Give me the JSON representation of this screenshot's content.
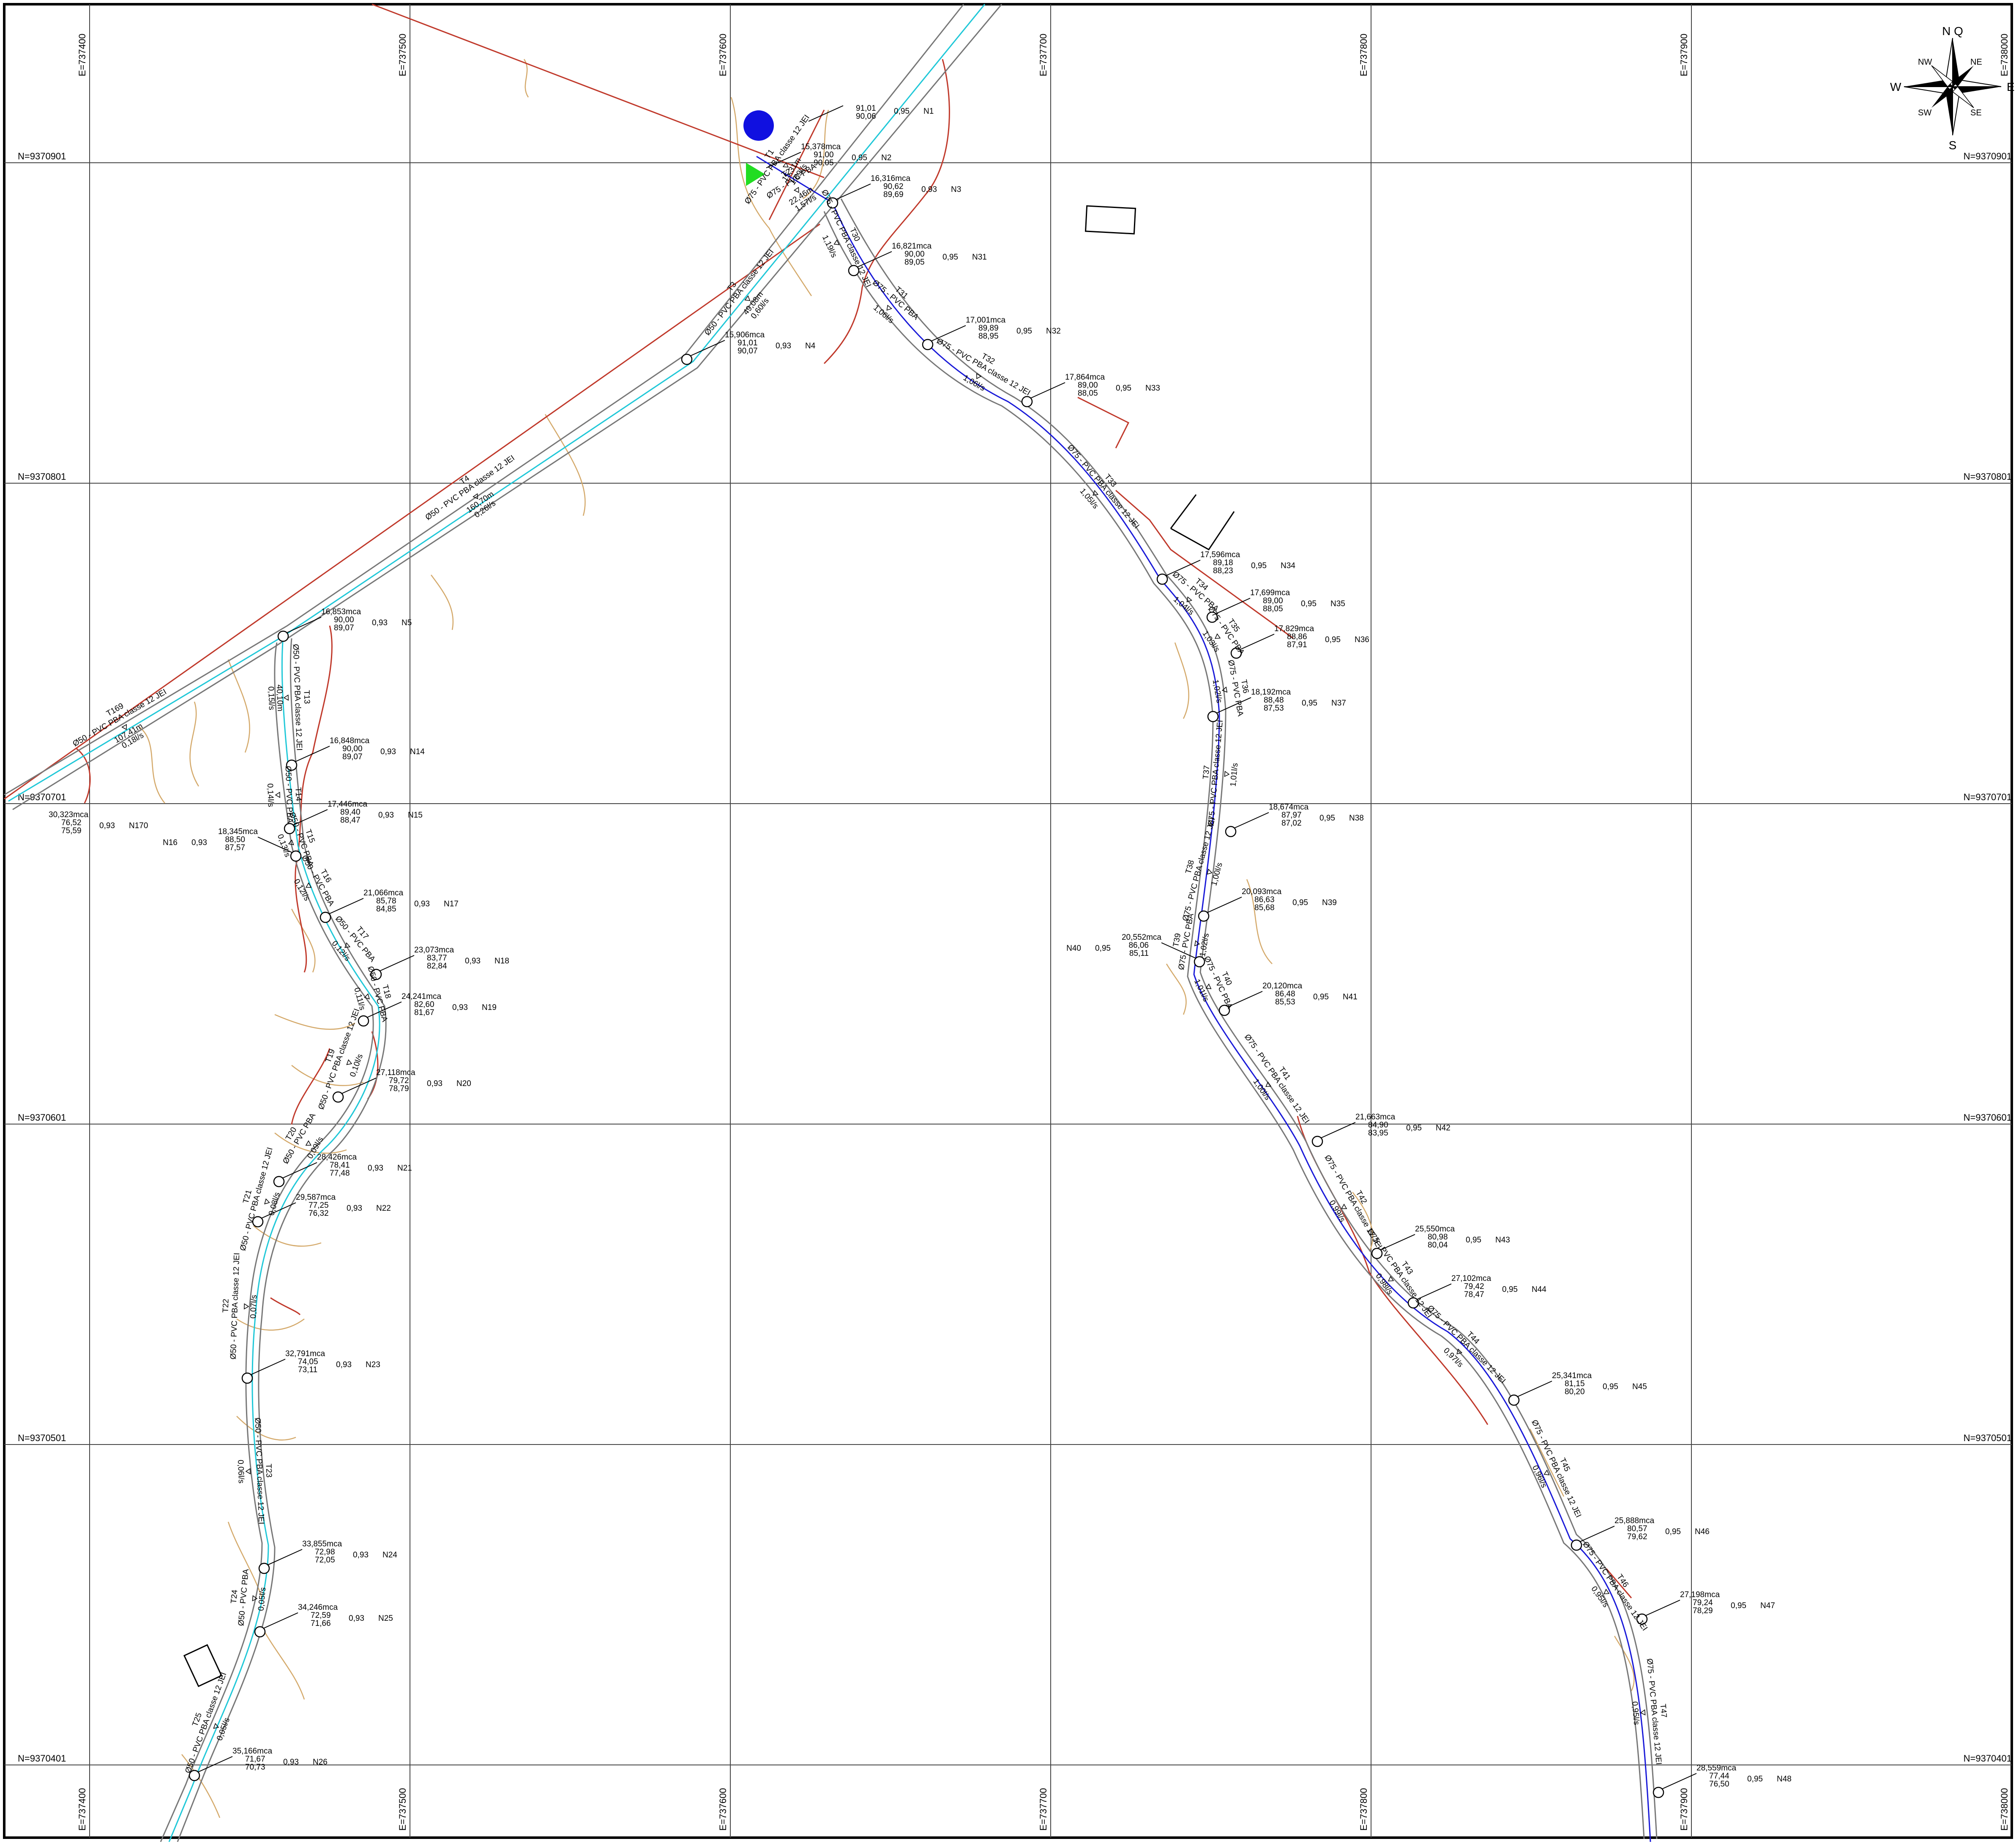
{
  "grid": {
    "eastings": [
      "E=737400",
      "E=737500",
      "E=737600",
      "E=737700",
      "E=737800",
      "E=737900",
      "E=738000"
    ],
    "northings": [
      "N=9370901",
      "N=9370801",
      "N=9370701",
      "N=9370601",
      "N=9370501",
      "N=9370401"
    ]
  },
  "compass": {
    "n": "N Q",
    "s": "S",
    "e": "E",
    "w": "W",
    "ne": "NE",
    "nw": "NW",
    "se": "SE",
    "sw": "SW"
  },
  "colors": {
    "water_main": "#20c8d8",
    "branch": "#1a1ad8",
    "contour": "#d4a96a",
    "road": "#c0392b",
    "fence": "#cc2200",
    "tank": "#1010e0",
    "pump": "#22dd22"
  },
  "nodes": [
    {
      "id": "N1",
      "p": "",
      "z1": "91,01",
      "z2": "90,06",
      "k": "0,95"
    },
    {
      "id": "N2",
      "p": "15,378mca",
      "z1": "91,00",
      "z2": "90,05",
      "k": "0,95"
    },
    {
      "id": "N3",
      "p": "16,316mca",
      "z1": "90,62",
      "z2": "89,69",
      "k": "0,93"
    },
    {
      "id": "N4",
      "p": "15,906mca",
      "z1": "91,01",
      "z2": "90,07",
      "k": "0,93"
    },
    {
      "id": "N5",
      "p": "16,853mca",
      "z1": "90,00",
      "z2": "89,07",
      "k": "0,93"
    },
    {
      "id": "N14",
      "p": "16,848mca",
      "z1": "90,00",
      "z2": "89,07",
      "k": "0,93"
    },
    {
      "id": "N15",
      "p": "17,446mca",
      "z1": "89,40",
      "z2": "88,47",
      "k": "0,93"
    },
    {
      "id": "N16",
      "p": "18,345mca",
      "z1": "88,50",
      "z2": "87,57",
      "k": "0,93"
    },
    {
      "id": "N17",
      "p": "21,066mca",
      "z1": "85,78",
      "z2": "84,85",
      "k": "0,93"
    },
    {
      "id": "N18",
      "p": "23,073mca",
      "z1": "83,77",
      "z2": "82,84",
      "k": "0,93"
    },
    {
      "id": "N19",
      "p": "24,241mca",
      "z1": "82,60",
      "z2": "81,67",
      "k": "0,93"
    },
    {
      "id": "N20",
      "p": "27,118mca",
      "z1": "79,72",
      "z2": "78,79",
      "k": "0,93"
    },
    {
      "id": "N21",
      "p": "28,426mca",
      "z1": "78,41",
      "z2": "77,48",
      "k": "0,93"
    },
    {
      "id": "N22",
      "p": "29,587mca",
      "z1": "77,25",
      "z2": "76,32",
      "k": "0,93"
    },
    {
      "id": "N23",
      "p": "32,791mca",
      "z1": "74,05",
      "z2": "73,11",
      "k": "0,93"
    },
    {
      "id": "N24",
      "p": "33,855mca",
      "z1": "72,98",
      "z2": "72,05",
      "k": "0,93"
    },
    {
      "id": "N25",
      "p": "34,246mca",
      "z1": "72,59",
      "z2": "71,66",
      "k": "0,93"
    },
    {
      "id": "N26",
      "p": "35,166mca",
      "z1": "71,67",
      "z2": "70,73",
      "k": "0,93"
    },
    {
      "id": "N31",
      "p": "16,821mca",
      "z1": "90,00",
      "z2": "89,05",
      "k": "0,95"
    },
    {
      "id": "N32",
      "p": "17,001mca",
      "z1": "89,89",
      "z2": "88,95",
      "k": "0,95"
    },
    {
      "id": "N33",
      "p": "17,864mca",
      "z1": "89,00",
      "z2": "88,05",
      "k": "0,95"
    },
    {
      "id": "N34",
      "p": "17,596mca",
      "z1": "89,18",
      "z2": "88,23",
      "k": "0,95"
    },
    {
      "id": "N35",
      "p": "17,699mca",
      "z1": "89,00",
      "z2": "88,05",
      "k": "0,95"
    },
    {
      "id": "N36",
      "p": "17,829mca",
      "z1": "88,86",
      "z2": "87,91",
      "k": "0,95"
    },
    {
      "id": "N37",
      "p": "18,192mca",
      "z1": "88,48",
      "z2": "87,53",
      "k": "0,95"
    },
    {
      "id": "N38",
      "p": "18,674mca",
      "z1": "87,97",
      "z2": "87,02",
      "k": "0,95"
    },
    {
      "id": "N39",
      "p": "20,093mca",
      "z1": "86,63",
      "z2": "85,68",
      "k": "0,95"
    },
    {
      "id": "N40",
      "p": "20,552mca",
      "z1": "86,06",
      "z2": "85,11",
      "k": "0,95"
    },
    {
      "id": "N41",
      "p": "20,120mca",
      "z1": "86,48",
      "z2": "85,53",
      "k": "0,95"
    },
    {
      "id": "N42",
      "p": "21,663mca",
      "z1": "84,90",
      "z2": "83,95",
      "k": "0,95"
    },
    {
      "id": "N43",
      "p": "25,550mca",
      "z1": "80,98",
      "z2": "80,04",
      "k": "0,95"
    },
    {
      "id": "N44",
      "p": "27,102mca",
      "z1": "79,42",
      "z2": "78,47",
      "k": "0,95"
    },
    {
      "id": "N45",
      "p": "25,341mca",
      "z1": "81,15",
      "z2": "80,20",
      "k": "0,95"
    },
    {
      "id": "N46",
      "p": "25,888mca",
      "z1": "80,57",
      "z2": "79,62",
      "k": "0,95"
    },
    {
      "id": "N47",
      "p": "27,198mca",
      "z1": "79,24",
      "z2": "78,29",
      "k": "0,95"
    },
    {
      "id": "N48",
      "p": "28,559mca",
      "z1": "77,44",
      "z2": "76,50",
      "k": "0,95"
    },
    {
      "id": "N170",
      "p": "30,323mca",
      "z1": "76,52",
      "z2": "75,59",
      "k": "0,93"
    }
  ],
  "pipes": [
    {
      "id": "T1",
      "spec": "Ø75 - PVC PBA classe 12 JEI",
      "len": "15,31m",
      "q": "1,89l/s"
    },
    {
      "id": "T2",
      "spec": "Ø75 - PVC PBA",
      "len": "22,46m",
      "q": "1,57l/s"
    },
    {
      "id": "T3",
      "spec": "Ø50 - PVC PBA classe 12 JEI",
      "len": "49,08m",
      "q": "0,60l/s"
    },
    {
      "id": "T4",
      "spec": "Ø50 - PVC PBA classe 12 JEI",
      "len": "160,70m",
      "q": "0,26l/s"
    },
    {
      "id": "T13",
      "spec": "Ø50 - PVC PBA classe 12 JEI",
      "len": "40,10m",
      "q": "0,15l/s"
    },
    {
      "id": "T14",
      "spec": "Ø50 - PVC PBA",
      "len": "",
      "q": "0,14l/s"
    },
    {
      "id": "T15",
      "spec": "Ø50 - PVC PBA",
      "len": "",
      "q": "0,13l/s"
    },
    {
      "id": "T16",
      "spec": "Ø50 - PVC PBA",
      "len": "",
      "q": "0,12l/s"
    },
    {
      "id": "T17",
      "spec": "Ø50 - PVC PBA",
      "len": "",
      "q": "0,12l/s"
    },
    {
      "id": "T18",
      "spec": "Ø50 - PVC PBA",
      "len": "",
      "q": "0,11l/s"
    },
    {
      "id": "T19",
      "spec": "Ø50 - PVC PBA classe 12 JEI",
      "len": "",
      "q": "0,10l/s"
    },
    {
      "id": "T20",
      "spec": "Ø50 - PVC PBA",
      "len": "",
      "q": "0,09l/s"
    },
    {
      "id": "T21",
      "spec": "Ø50 - PVC PBA classe 12 JEI",
      "len": "",
      "q": "0,08l/s"
    },
    {
      "id": "T22",
      "spec": "Ø50 - PVC PBA classe 12 JEI",
      "len": "",
      "q": "0,07l/s"
    },
    {
      "id": "T23",
      "spec": "Ø50 - PVC PBA classe 12 JEI",
      "len": "",
      "q": "0,06l/s"
    },
    {
      "id": "T24",
      "spec": "Ø50 - PVC PBA",
      "len": "",
      "q": "0,05l/s"
    },
    {
      "id": "T25",
      "spec": "Ø50 - PVC PBA classe 12 JEI",
      "len": "",
      "q": "0,05l/s"
    },
    {
      "id": "T169",
      "spec": "Ø50 - PVC PBA classe 12 JEI",
      "len": "107,41m",
      "q": "0,18l/s"
    },
    {
      "id": "T30",
      "spec": "Ø75 - PVC PBA classe 12 JEI",
      "len": "",
      "q": "1,19l/s"
    },
    {
      "id": "T31",
      "spec": "Ø75 - PVC PBA",
      "len": "",
      "q": "1,06l/s"
    },
    {
      "id": "T32",
      "spec": "Ø75 - PVC PBA classe 12 JEI",
      "len": "",
      "q": "1,06l/s"
    },
    {
      "id": "T33",
      "spec": "Ø75 - PVC PBA classe 12 JEI",
      "len": "",
      "q": "1,05l/s"
    },
    {
      "id": "T34",
      "spec": "Ø75 - PVC PBA",
      "len": "",
      "q": "1,04l/s"
    },
    {
      "id": "T35",
      "spec": "Ø75 - PVC PBA",
      "len": "",
      "q": "1,03l/s"
    },
    {
      "id": "T36",
      "spec": "Ø75 - PVC PBA",
      "len": "",
      "q": "1,02l/s"
    },
    {
      "id": "T37",
      "spec": "Ø75 - PVC PBA classe 12 JEI",
      "len": "",
      "q": "1,01l/s"
    },
    {
      "id": "T38",
      "spec": "Ø75 - PVC PBA classe 12 JEI",
      "len": "",
      "q": "1,00l/s"
    },
    {
      "id": "T39",
      "spec": "Ø75 - PVC PBA",
      "len": "",
      "q": "1,02l/s"
    },
    {
      "id": "T40",
      "spec": "Ø75 - PVC PBA",
      "len": "",
      "q": "1,01l/s"
    },
    {
      "id": "T41",
      "spec": "Ø75 - PVC PBA classe 12 JEI",
      "len": "",
      "q": "1,00l/s"
    },
    {
      "id": "T42",
      "spec": "Ø75 - PVC PBA classe 12 JEI",
      "len": "",
      "q": "0,99l/s"
    },
    {
      "id": "T43",
      "spec": "Ø75 - PVC PBA classe 12 JEI",
      "len": "",
      "q": "0,98l/s"
    },
    {
      "id": "T44",
      "spec": "Ø75 - PVC PBA classe 12 JEI",
      "len": "",
      "q": "0,97l/s"
    },
    {
      "id": "T45",
      "spec": "Ø75 - PVC PBA classe 12 JEI",
      "len": "",
      "q": "0,96l/s"
    },
    {
      "id": "T46",
      "spec": "Ø75 - PVC PBA classe 12 JEI",
      "len": "",
      "q": "0,95l/s"
    },
    {
      "id": "T47",
      "spec": "Ø75 - PVC PBA classe 12 JEI",
      "len": "",
      "q": "0,95l/s"
    }
  ]
}
